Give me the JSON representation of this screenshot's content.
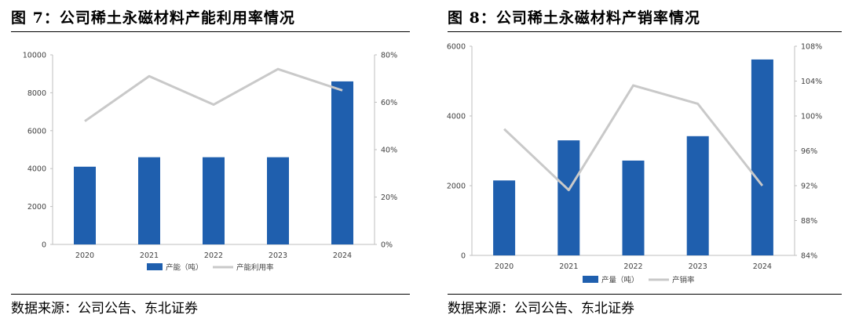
{
  "figures": [
    {
      "title": "图 7：公司稀土永磁材料产能利用率情况",
      "source": "数据来源：公司公告、东北证券",
      "chart_data": {
        "type": "bar",
        "categories": [
          "2020",
          "2021",
          "2022",
          "2023",
          "2024"
        ],
        "series": [
          {
            "name": "产能（吨）",
            "kind": "bar",
            "axis": "left",
            "color": "#1F5FAE",
            "values": [
              4100,
              4600,
              4600,
              4600,
              8600
            ]
          },
          {
            "name": "产能利用率",
            "kind": "line",
            "axis": "right",
            "color": "#C9C9C9",
            "values": [
              0.52,
              0.71,
              0.59,
              0.74,
              0.65
            ]
          }
        ],
        "y_left": {
          "min": 0,
          "max": 10000,
          "ticks": [
            "0",
            "2000",
            "4000",
            "6000",
            "8000",
            "10000"
          ]
        },
        "y_right": {
          "min": 0,
          "max": 0.8,
          "ticks": [
            "0%",
            "20%",
            "40%",
            "60%",
            "80%"
          ]
        },
        "legend": "bottom",
        "grid": false
      }
    },
    {
      "title": "图 8：公司稀土永磁材料产销率情况",
      "source": "数据来源：公司公告、东北证券",
      "chart_data": {
        "type": "bar",
        "categories": [
          "2020",
          "2021",
          "2022",
          "2023",
          "2024"
        ],
        "series": [
          {
            "name": "产量（吨）",
            "kind": "bar",
            "axis": "left",
            "color": "#1F5FAE",
            "values": [
              2150,
              3300,
              2720,
              3420,
              5620
            ]
          },
          {
            "name": "产销率",
            "kind": "line",
            "axis": "right",
            "color": "#C9C9C9",
            "values": [
              0.985,
              0.915,
              1.035,
              1.014,
              0.92
            ]
          }
        ],
        "y_left": {
          "min": 0,
          "max": 6000,
          "ticks": [
            "0",
            "2000",
            "4000",
            "6000"
          ]
        },
        "y_right": {
          "min": 0.84,
          "max": 1.08,
          "ticks": [
            "84%",
            "88%",
            "92%",
            "96%",
            "100%",
            "104%",
            "108%"
          ]
        },
        "legend": "bottom",
        "grid": false
      }
    }
  ]
}
